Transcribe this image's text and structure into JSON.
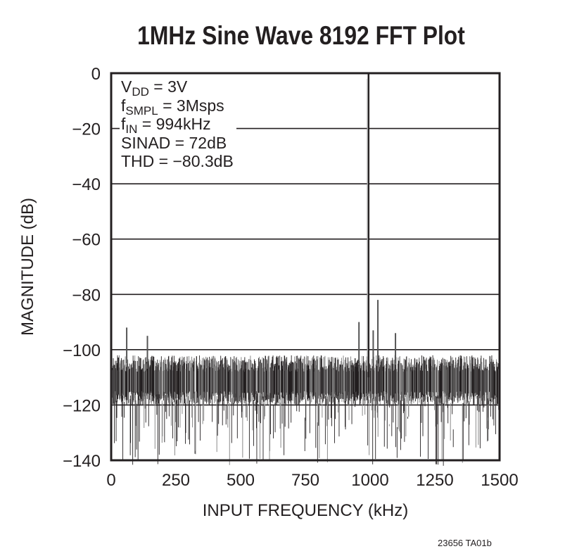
{
  "chart_data": {
    "type": "line",
    "title": "1MHz Sine Wave 8192 FFT Plot",
    "xlabel": "INPUT FREQUENCY (kHz)",
    "ylabel": "MAGNITUDE (dB)",
    "xlim": [
      0,
      1500
    ],
    "ylim": [
      -140,
      0
    ],
    "xticks": [
      "0",
      "250",
      "500",
      "750",
      "1000",
      "1250",
      "1500"
    ],
    "yticks": [
      "0",
      "−20",
      "−40",
      "−60",
      "−80",
      "−100",
      "−120",
      "−140"
    ],
    "grid": "horizontal",
    "fundamental": {
      "x": 994,
      "y": 0
    },
    "spurs": [
      {
        "x": 957,
        "y": -90
      },
      {
        "x": 1030,
        "y": -82
      },
      {
        "x": 1012,
        "y": -93
      },
      {
        "x": 1098,
        "y": -94
      },
      {
        "x": 60,
        "y": -92
      },
      {
        "x": 140,
        "y": -95
      }
    ],
    "noise_floor": {
      "mean": -112,
      "min": -140,
      "max": -92
    },
    "annotations": [
      {
        "main": "V",
        "sub": "DD",
        "rest": " = 3V"
      },
      {
        "main": "f",
        "sub": "SMPL",
        "rest": " = 3Msps"
      },
      {
        "main": "f",
        "sub": "IN",
        "rest": " = 994kHz"
      },
      {
        "main": "SINAD = 72dB",
        "sub": "",
        "rest": ""
      },
      {
        "main": "THD = −80.3dB",
        "sub": "",
        "rest": ""
      }
    ]
  },
  "footer": "23656 TA01b"
}
